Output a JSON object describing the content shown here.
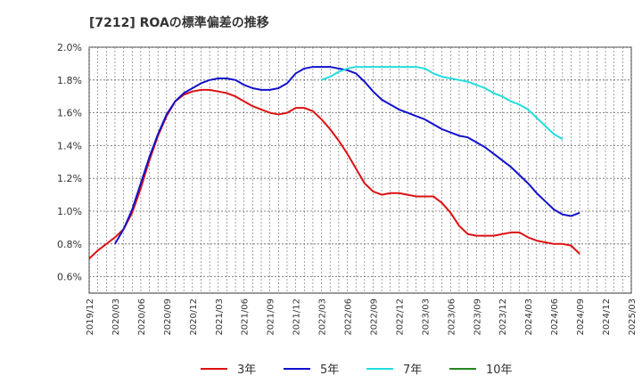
{
  "chart_data": {
    "type": "line",
    "title": "[7212]  ROAの標準偏差の推移",
    "xlabel": "",
    "ylabel": "",
    "ylim": [
      0.005,
      0.02
    ],
    "y_ticks": [
      "0.6%",
      "0.8%",
      "1.0%",
      "1.2%",
      "1.4%",
      "1.6%",
      "1.8%",
      "2.0%"
    ],
    "y_tick_values": [
      0.006,
      0.008,
      0.01,
      0.012,
      0.014,
      0.016,
      0.018,
      0.02
    ],
    "x_ticks": [
      "2019/12",
      "2020/03",
      "2020/06",
      "2020/09",
      "2020/12",
      "2021/03",
      "2021/06",
      "2021/09",
      "2021/12",
      "2022/03",
      "2022/06",
      "2022/09",
      "2022/12",
      "2023/03",
      "2023/06",
      "2023/09",
      "2023/12",
      "2024/03",
      "2024/06",
      "2024/09",
      "2024/12",
      "2025/03"
    ],
    "x_start": "2019/12",
    "x_end": "2025/03",
    "grid": true,
    "legend_position": "bottom",
    "series": [
      {
        "name": "3年",
        "color": "#dd1111",
        "start": "2019/12",
        "values": [
          0.0071,
          0.0076,
          0.008,
          0.0084,
          0.0089,
          0.0099,
          0.0114,
          0.0131,
          0.0146,
          0.0158,
          0.0167,
          0.0171,
          0.0173,
          0.0174,
          0.0174,
          0.0173,
          0.0172,
          0.017,
          0.0167,
          0.0164,
          0.0162,
          0.016,
          0.0159,
          0.016,
          0.0163,
          0.0163,
          0.0161,
          0.0156,
          0.015,
          0.0143,
          0.0135,
          0.0126,
          0.0117,
          0.0112,
          0.011,
          0.0111,
          0.0111,
          0.011,
          0.0109,
          0.0109,
          0.0109,
          0.0105,
          0.0099,
          0.0091,
          0.0086,
          0.0085,
          0.0085,
          0.0085,
          0.0086,
          0.0087,
          0.0087,
          0.0084,
          0.0082,
          0.0081,
          0.008,
          0.008,
          0.0079,
          0.0074
        ]
      },
      {
        "name": "5年",
        "color": "#1111cc",
        "start": "2020/03",
        "values": [
          0.008,
          0.0089,
          0.0101,
          0.0117,
          0.0133,
          0.0147,
          0.0159,
          0.0167,
          0.0172,
          0.0175,
          0.0178,
          0.018,
          0.0181,
          0.0181,
          0.018,
          0.0177,
          0.0175,
          0.0174,
          0.0174,
          0.0175,
          0.0178,
          0.0184,
          0.0187,
          0.0188,
          0.0188,
          0.0188,
          0.0187,
          0.0186,
          0.0184,
          0.0179,
          0.0173,
          0.0168,
          0.0165,
          0.0162,
          0.016,
          0.0158,
          0.0156,
          0.0153,
          0.015,
          0.0148,
          0.0146,
          0.0145,
          0.0142,
          0.0139,
          0.0135,
          0.0131,
          0.0127,
          0.0122,
          0.0117,
          0.0111,
          0.0106,
          0.0101,
          0.0098,
          0.0097,
          0.0099
        ]
      },
      {
        "name": "7年",
        "color": "#22dddd",
        "start": "2022/03",
        "values": [
          0.018,
          0.0182,
          0.0185,
          0.0187,
          0.0188,
          0.0188,
          0.0188,
          0.0188,
          0.0188,
          0.0188,
          0.0188,
          0.0188,
          0.0187,
          0.0184,
          0.0182,
          0.0181,
          0.018,
          0.0179,
          0.0177,
          0.0175,
          0.0172,
          0.017,
          0.0167,
          0.0165,
          0.0162,
          0.0157,
          0.0152,
          0.0147,
          0.0144
        ]
      },
      {
        "name": "10年",
        "color": "#228822",
        "start": "2022/03",
        "values": []
      }
    ]
  }
}
